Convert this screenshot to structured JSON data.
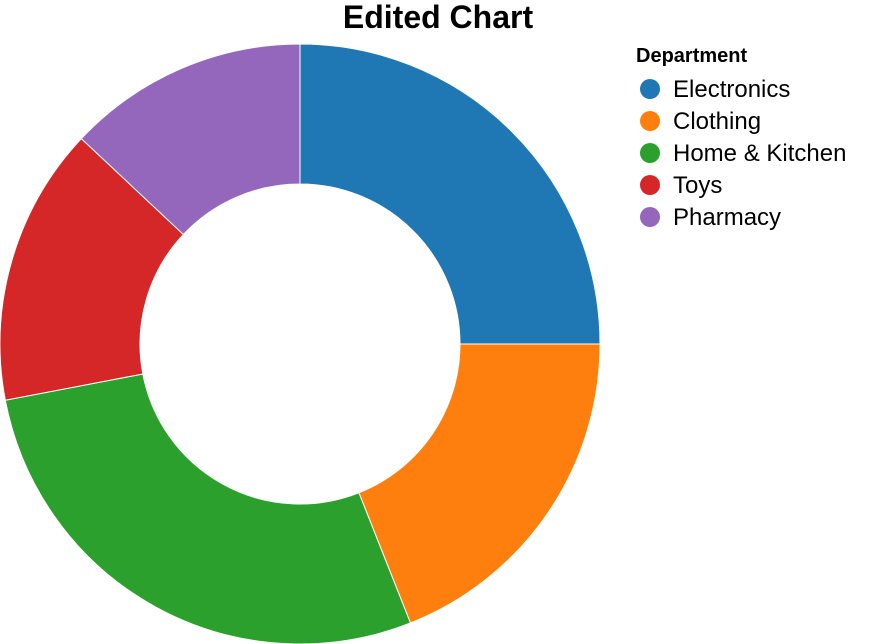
{
  "chart_data": {
    "type": "pie",
    "variant": "donut",
    "title": "Edited Chart",
    "legend_title": "Department",
    "legend_position": "top-right",
    "categories": [
      "Electronics",
      "Clothing",
      "Home & Kitchen",
      "Toys",
      "Pharmacy"
    ],
    "values": [
      25,
      19,
      28,
      15,
      13
    ],
    "colors": [
      "#1f77b4",
      "#ff7f0e",
      "#2ca02c",
      "#d62728",
      "#9467bd"
    ]
  }
}
